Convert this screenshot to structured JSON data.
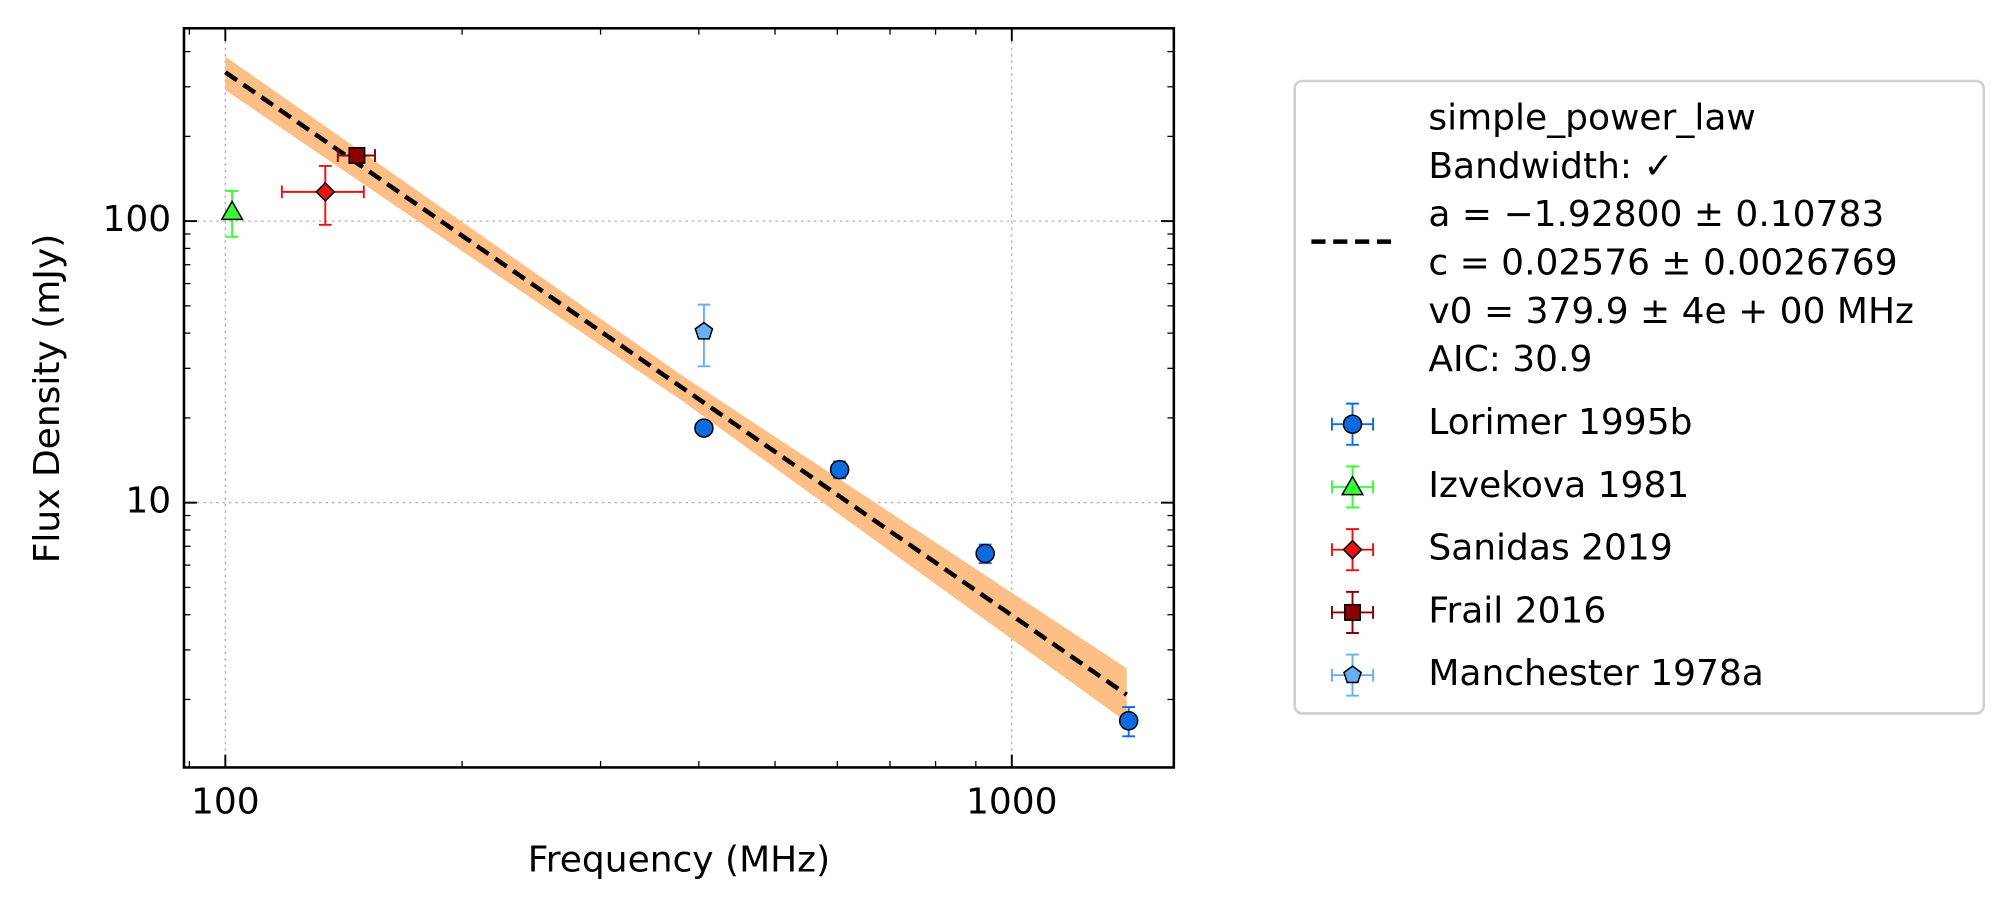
{
  "chart_data": {
    "type": "scatter",
    "xlabel": "Frequency (MHz)",
    "ylabel": "Flux Density (mJy)",
    "xscale": "log",
    "yscale": "log",
    "xlim": [
      88.6,
      1607
    ],
    "ylim": [
      1.147,
      484
    ],
    "xticks": [
      100,
      1000
    ],
    "yticks": [
      10,
      100
    ],
    "xminorticks": [
      90,
      200,
      300,
      400,
      500,
      600,
      700,
      800,
      900
    ],
    "yminorticks": [
      2,
      3,
      4,
      5,
      6,
      7,
      8,
      9,
      20,
      30,
      40,
      50,
      60,
      70,
      80,
      90,
      200,
      300,
      400
    ],
    "grid": true,
    "legend": "right",
    "fit": {
      "name": [
        "simple_power_law",
        "Bandwidth: ✓",
        "a = −1.92800 ± 0.10783",
        "c = 0.02576 ± 0.0026769",
        "v0 = 379.9 ± 4e + 00 MHz",
        "AIC: 30.9"
      ],
      "color": "#000000",
      "band_color": "#fdbf85",
      "x": [
        100,
        1400
      ],
      "values": [
        338,
        2.08
      ],
      "band_x": [
        100,
        380,
        1400
      ],
      "band_lower": [
        292,
        23.1,
        1.66
      ],
      "band_upper": [
        384,
        28.4,
        2.58
      ]
    },
    "series": [
      {
        "name": "Lorimer 1995b",
        "color": "#0d6be0",
        "marker": "o",
        "x": [
          406,
          604,
          925,
          1408
        ],
        "values": [
          18.4,
          13.1,
          6.6,
          1.68
        ],
        "yerr": [
          0.8,
          0.9,
          0.5,
          0.2
        ]
      },
      {
        "name": "Izvekova 1981",
        "color": "#33ff33",
        "marker": "^",
        "x": [
          102
        ],
        "values": [
          108
        ],
        "yerr": [
          20
        ]
      },
      {
        "name": "Sanidas 2019",
        "color": "#ee1111",
        "marker": "D",
        "x": [
          134
        ],
        "values": [
          127
        ],
        "yerr": [
          30
        ],
        "xerr": [
          16
        ]
      },
      {
        "name": "Frail 2016",
        "color": "#8b0000",
        "marker": "s",
        "x": [
          147
        ],
        "values": [
          171
        ],
        "yerr": [
          8
        ],
        "xerr": [
          8
        ]
      },
      {
        "name": "Manchester 1978a",
        "color": "#66b0f0",
        "marker": "p",
        "x": [
          406
        ],
        "values": [
          40.5
        ],
        "yerr": [
          10
        ]
      }
    ]
  }
}
